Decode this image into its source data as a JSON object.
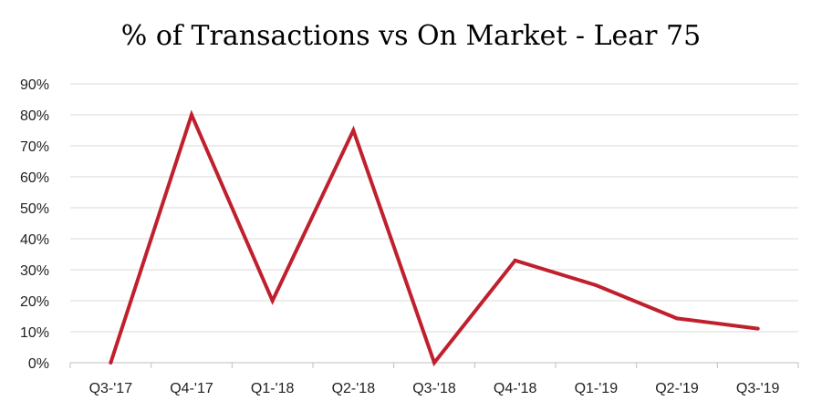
{
  "chart_data": {
    "type": "line",
    "title": "% of Transactions vs On Market - Lear 75",
    "xlabel": "",
    "ylabel": "",
    "categories": [
      "Q3-'17",
      "Q4-'17",
      "Q1-'18",
      "Q2-'18",
      "Q3-'18",
      "Q4-'18",
      "Q1-'19",
      "Q2-'19",
      "Q3-'19"
    ],
    "series": [
      {
        "values": [
          0,
          80,
          20,
          75,
          0,
          33,
          25,
          14.3,
          11
        ],
        "color": "#C0202E"
      }
    ],
    "ylim": [
      0,
      90
    ],
    "yticks": [
      0,
      10,
      20,
      30,
      40,
      50,
      60,
      70,
      80,
      90
    ],
    "ytick_labels": [
      "0%",
      "10%",
      "20%",
      "30%",
      "40%",
      "50%",
      "60%",
      "70%",
      "80%",
      "90%"
    ],
    "grid": true,
    "legend": "none",
    "gridline_color": "#D9D9D9"
  }
}
